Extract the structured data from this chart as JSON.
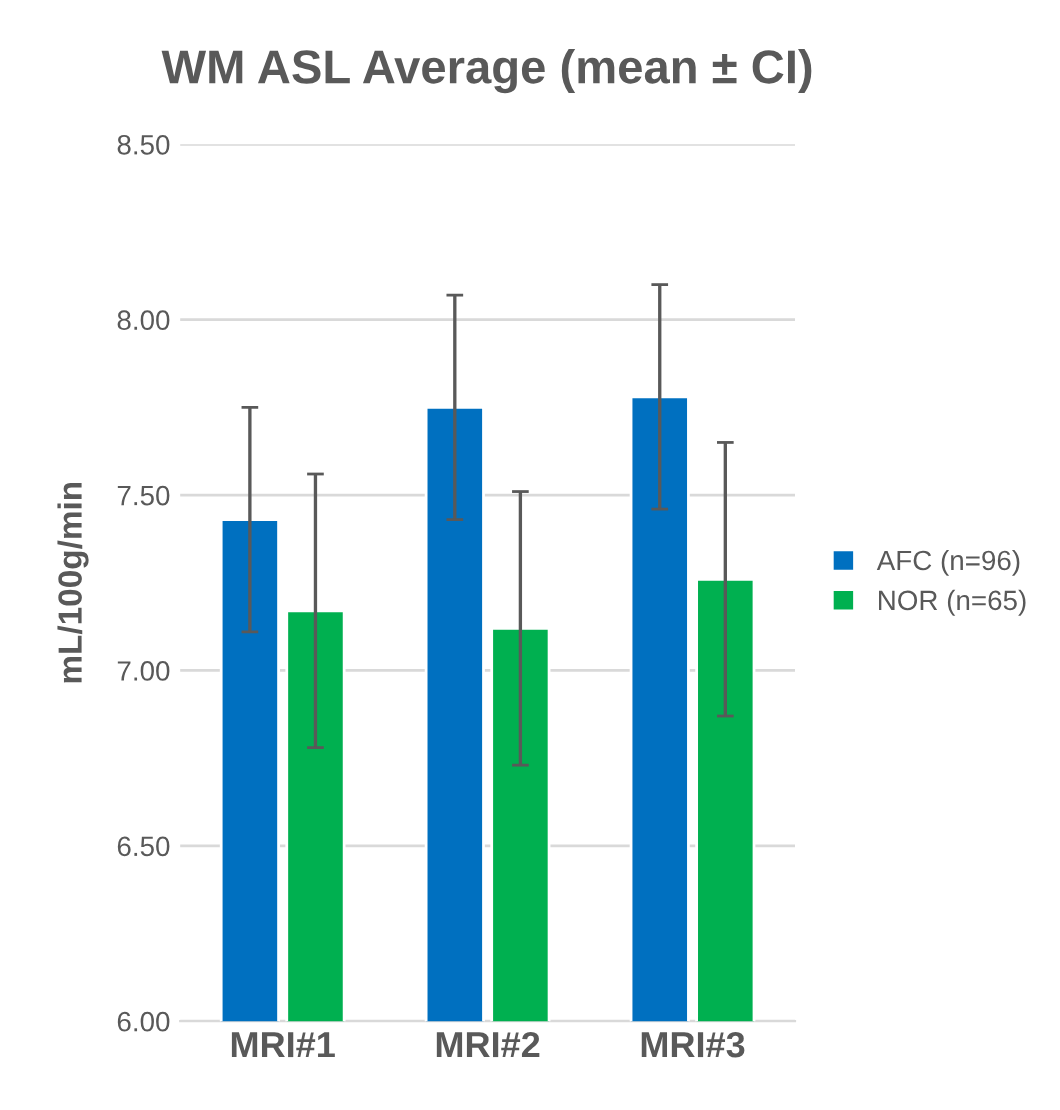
{
  "chart_data": {
    "type": "bar",
    "title": "WM ASL Average (mean ± CI)",
    "ylabel": "mL/100g/min",
    "categories": [
      "MRI#1",
      "MRI#2",
      "MRI#3"
    ],
    "series": [
      {
        "name": "AFC (n=96)",
        "color": "#0070c0",
        "values": [
          7.43,
          7.75,
          7.78
        ],
        "errors": [
          0.32,
          0.32,
          0.32
        ]
      },
      {
        "name": "NOR (n=65)",
        "color": "#00b050",
        "values": [
          7.17,
          7.12,
          7.26
        ],
        "errors": [
          0.39,
          0.39,
          0.39
        ]
      }
    ],
    "ylim": [
      6.0,
      8.5
    ],
    "yticks": [
      {
        "value": 6.0,
        "label": "6.00"
      },
      {
        "value": 6.5,
        "label": "6.50"
      },
      {
        "value": 7.0,
        "label": "7.00"
      },
      {
        "value": 7.5,
        "label": "7.50"
      },
      {
        "value": 8.0,
        "label": "8.00"
      },
      {
        "value": 8.5,
        "label": "8.50"
      }
    ],
    "grid": "y",
    "legend": "right"
  }
}
